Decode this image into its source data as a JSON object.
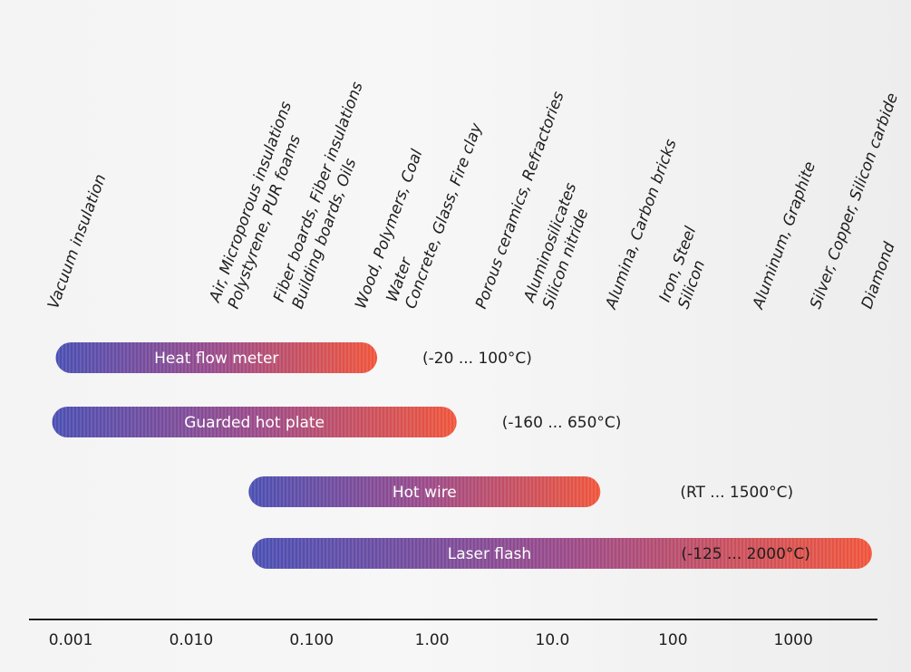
{
  "chart_data": {
    "type": "bar",
    "orientation": "horizontal-range",
    "x_scale": "log",
    "xlim": [
      0.00045,
      5000
    ],
    "x_ticks": [
      {
        "value": 0.001,
        "label": "0.001"
      },
      {
        "value": 0.01,
        "label": "0.010"
      },
      {
        "value": 0.1,
        "label": "0.100"
      },
      {
        "value": 1,
        "label": "1.00"
      },
      {
        "value": 10,
        "label": "10.0"
      },
      {
        "value": 100,
        "label": "100"
      },
      {
        "value": 1000,
        "label": "1000"
      }
    ],
    "materials": [
      {
        "lines": [
          "Vacuum insulation"
        ],
        "value": 0.0007
      },
      {
        "lines": [
          "Air, Microporous insulations",
          "Polystyrene, PUR foams"
        ],
        "value": 0.022
      },
      {
        "lines": [
          "Fiber boards, Fiber insulations",
          "Building boards, Oils"
        ],
        "value": 0.075
      },
      {
        "lines": [
          "Wood, Polymers, Coal"
        ],
        "value": 0.25
      },
      {
        "lines": [
          "Water",
          "Concrete, Glass, Fire clay"
        ],
        "value": 0.65
      },
      {
        "lines": [
          "Porous ceramics, Refractories"
        ],
        "value": 2.5
      },
      {
        "lines": [
          "Aluminosilicates",
          "Silicon nitride"
        ],
        "value": 9
      },
      {
        "lines": [
          "Alumina, Carbon bricks"
        ],
        "value": 30
      },
      {
        "lines": [
          "Iron, Steel",
          "Silicon"
        ],
        "value": 120
      },
      {
        "lines": [
          "Aluminum, Graphite"
        ],
        "value": 500
      },
      {
        "lines": [
          "Silver, Copper, Silicon carbide"
        ],
        "value": 1500
      },
      {
        "lines": [
          "Diamond"
        ],
        "value": 4000
      }
    ],
    "methods": [
      {
        "name": "Heat flow meter",
        "x_start": 0.00075,
        "x_end": 0.35,
        "range_label": "(-20 ... 100°C)",
        "range_inside": false
      },
      {
        "name": "Guarded hot plate",
        "x_start": 0.0007,
        "x_end": 1.6,
        "range_label": "(-160 ... 650°C)",
        "range_inside": false
      },
      {
        "name": "Hot wire",
        "x_start": 0.03,
        "x_end": 25,
        "range_label": "(RT ... 1500°C)",
        "range_inside": false
      },
      {
        "name": "Laser flash",
        "x_start": 0.032,
        "x_end": 4500,
        "range_label": "(-125 ... 2000°C)",
        "range_inside": true
      }
    ],
    "colors": {
      "bar_start": "#4a4fb3",
      "bar_end": "#f0543a"
    }
  }
}
